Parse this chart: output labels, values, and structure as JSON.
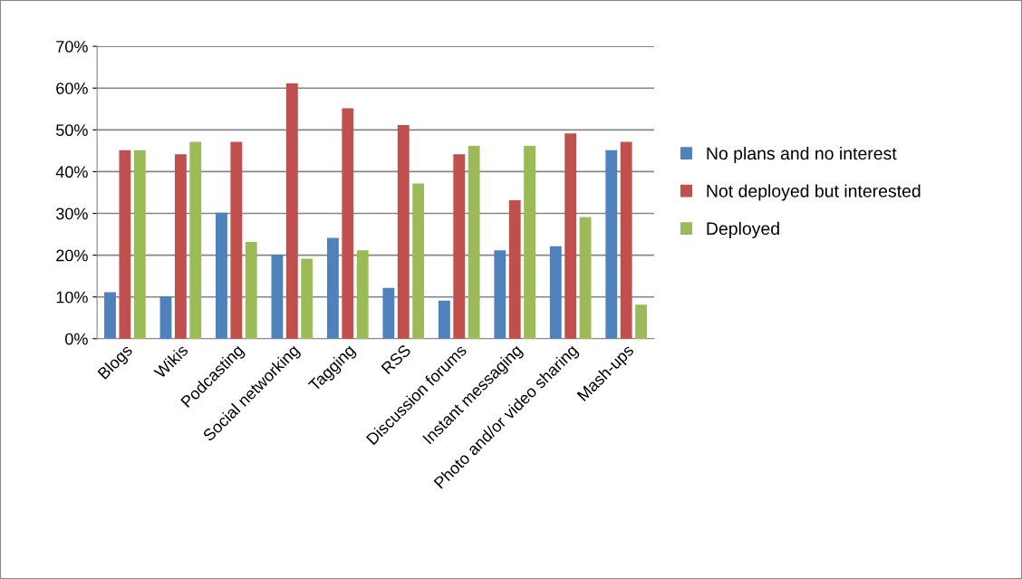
{
  "chart_data": {
    "type": "bar",
    "categories": [
      "Blogs",
      "Wikis",
      "Podcasting",
      "Social networking",
      "Tagging",
      "RSS",
      "Discussion forums",
      "Instant messaging",
      "Photo and/or video sharing",
      "Mash-ups"
    ],
    "series": [
      {
        "name": "No plans and no interest",
        "color": "#4f81bd",
        "values": [
          11,
          10,
          30,
          20,
          24,
          12,
          9,
          21,
          22,
          45
        ]
      },
      {
        "name": "Not deployed but interested",
        "color": "#c0504d",
        "values": [
          45,
          44,
          47,
          61,
          55,
          51,
          44,
          33,
          49,
          47
        ]
      },
      {
        "name": "Deployed",
        "color": "#9bbb59",
        "values": [
          45,
          47,
          23,
          19,
          21,
          37,
          46,
          46,
          29,
          8
        ]
      }
    ],
    "ylim": [
      0,
      70
    ],
    "yticks": [
      {
        "value": 0,
        "label": "0%"
      },
      {
        "value": 10,
        "label": "10%"
      },
      {
        "value": 20,
        "label": "20%"
      },
      {
        "value": 30,
        "label": "30%"
      },
      {
        "value": 40,
        "label": "40%"
      },
      {
        "value": 50,
        "label": "50%"
      },
      {
        "value": 60,
        "label": "60%"
      },
      {
        "value": 70,
        "label": "70%"
      }
    ],
    "grid": "y",
    "legend": "right"
  }
}
